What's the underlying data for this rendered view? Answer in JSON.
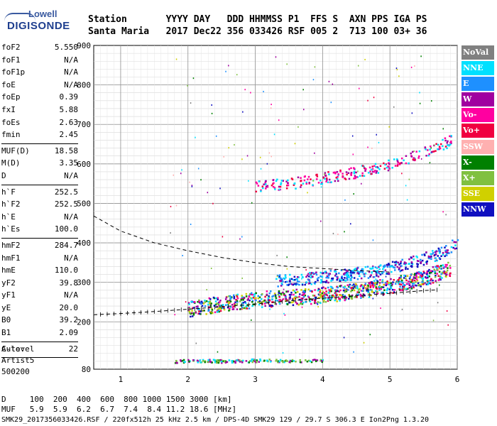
{
  "logo": {
    "line1": "Lowell",
    "line2": "DIGISONDE"
  },
  "header": {
    "labels": "Station       YYYY DAY   DDD HHMMSS P1  FFS S  AXN PPS IGA PS",
    "values": "Santa Maria   2017 Dec22 356 033426 RSF 005 2  713 100 03+ 36"
  },
  "params": {
    "group1": [
      {
        "name": "foF2",
        "value": "5.550"
      },
      {
        "name": "foF1",
        "value": "N/A"
      },
      {
        "name": "foF1p",
        "value": "N/A"
      },
      {
        "name": "foE",
        "value": "N/A"
      },
      {
        "name": "foEp",
        "value": "0.39"
      },
      {
        "name": "fxI",
        "value": "5.88"
      },
      {
        "name": "foEs",
        "value": "2.63"
      },
      {
        "name": "fmin",
        "value": "2.45"
      }
    ],
    "group2": [
      {
        "name": "MUF(D)",
        "value": "18.58"
      },
      {
        "name": "M(D)",
        "value": "3.35"
      },
      {
        "name": "D",
        "value": "N/A"
      }
    ],
    "group3": [
      {
        "name": "h`F",
        "value": "252.5"
      },
      {
        "name": "h`F2",
        "value": "252.5"
      },
      {
        "name": "h`E",
        "value": "N/A"
      },
      {
        "name": "h`Es",
        "value": "100.0"
      }
    ],
    "group4": [
      {
        "name": "hmF2",
        "value": "284.7"
      },
      {
        "name": "hmF1",
        "value": "N/A"
      },
      {
        "name": "hmE",
        "value": "110.0"
      },
      {
        "name": "yF2",
        "value": "39.8"
      },
      {
        "name": "yF1",
        "value": "N/A"
      },
      {
        "name": "yE",
        "value": "20.0"
      },
      {
        "name": "B0",
        "value": "39.2"
      },
      {
        "name": "B1",
        "value": "2.09"
      }
    ],
    "group5": [
      {
        "name": "C-level",
        "value": "22"
      }
    ]
  },
  "auto": {
    "line1": "Auto:",
    "line2": "Artist5",
    "line3": "500200"
  },
  "legend": [
    {
      "label": "NoVal",
      "color": "#808080"
    },
    {
      "label": "NNE",
      "color": "#00e0ff"
    },
    {
      "label": "E",
      "color": "#1e90ff"
    },
    {
      "label": "W",
      "color": "#a000a0"
    },
    {
      "label": "Vo-",
      "color": "#ff00a0"
    },
    {
      "label": "Vo+",
      "color": "#f00040"
    },
    {
      "label": "SSW",
      "color": "#ffb0b0"
    },
    {
      "label": "X-",
      "color": "#008000"
    },
    {
      "label": "X+",
      "color": "#80c040"
    },
    {
      "label": "SSE",
      "color": "#d0d000"
    },
    {
      "label": "NNW",
      "color": "#1010c0"
    }
  ],
  "footer": {
    "d_row": "D     100  200  400  600  800 1000 1500 3000 [km]",
    "muf_row": "MUF   5.9  5.9  6.2  6.7  7.4  8.4 11.2 18.6 [MHz]",
    "file_row": "SMK29_2017356033426.RSF / 220fx512h 25 kHz 2.5 km / DPS-4D SMK29 129 / 29.7 S 306.3 E Ion2Png 1.3.20"
  },
  "chart_data": {
    "type": "scatter",
    "title": "",
    "xlabel": "",
    "ylabel": "",
    "xlim": [
      0.6,
      6.0
    ],
    "ylim": [
      80,
      900
    ],
    "x_ticks": [
      1,
      2,
      3,
      4,
      5,
      6
    ],
    "y_ticks": [
      80,
      200,
      300,
      400,
      500,
      600,
      700,
      800,
      900
    ],
    "grid": true,
    "legend_position": "right",
    "series": [
      {
        "name": "F2 trace (o)",
        "x": [
          2.0,
          2.5,
          3.0,
          3.5,
          4.0,
          4.5,
          5.0,
          5.5,
          5.9
        ],
        "y": [
          225,
          240,
          250,
          255,
          262,
          272,
          285,
          305,
          330
        ]
      },
      {
        "name": "F2 trace (x)",
        "x": [
          3.3,
          3.8,
          4.3,
          4.8,
          5.3,
          5.8,
          6.0
        ],
        "y": [
          300,
          306,
          314,
          325,
          345,
          372,
          400
        ]
      },
      {
        "name": "2F multiple",
        "x": [
          3.0,
          3.5,
          4.0,
          4.5,
          5.0,
          5.5,
          5.9
        ],
        "y": [
          540,
          545,
          560,
          575,
          595,
          625,
          655
        ]
      },
      {
        "name": "Es layer",
        "x": [
          1.8,
          2.2,
          2.6,
          3.0,
          3.5,
          4.0
        ],
        "y": [
          100,
          101,
          100,
          102,
          101,
          102
        ]
      },
      {
        "name": "Profile (dashed)",
        "x": [
          0.6,
          1.0,
          1.5,
          2.0,
          2.5,
          3.0,
          3.5,
          4.0,
          4.5,
          5.0,
          5.5,
          5.7
        ],
        "y": [
          218,
          221,
          226,
          232,
          238,
          245,
          253,
          260,
          266,
          272,
          279,
          281
        ]
      },
      {
        "name": "MUF curve (dashed)",
        "x": [
          0.6,
          1.0,
          1.5,
          2.0,
          2.5,
          3.0,
          3.5,
          4.0,
          4.5,
          5.0
        ],
        "y": [
          468,
          430,
          400,
          380,
          363,
          350,
          340,
          335,
          330,
          326
        ]
      }
    ]
  }
}
